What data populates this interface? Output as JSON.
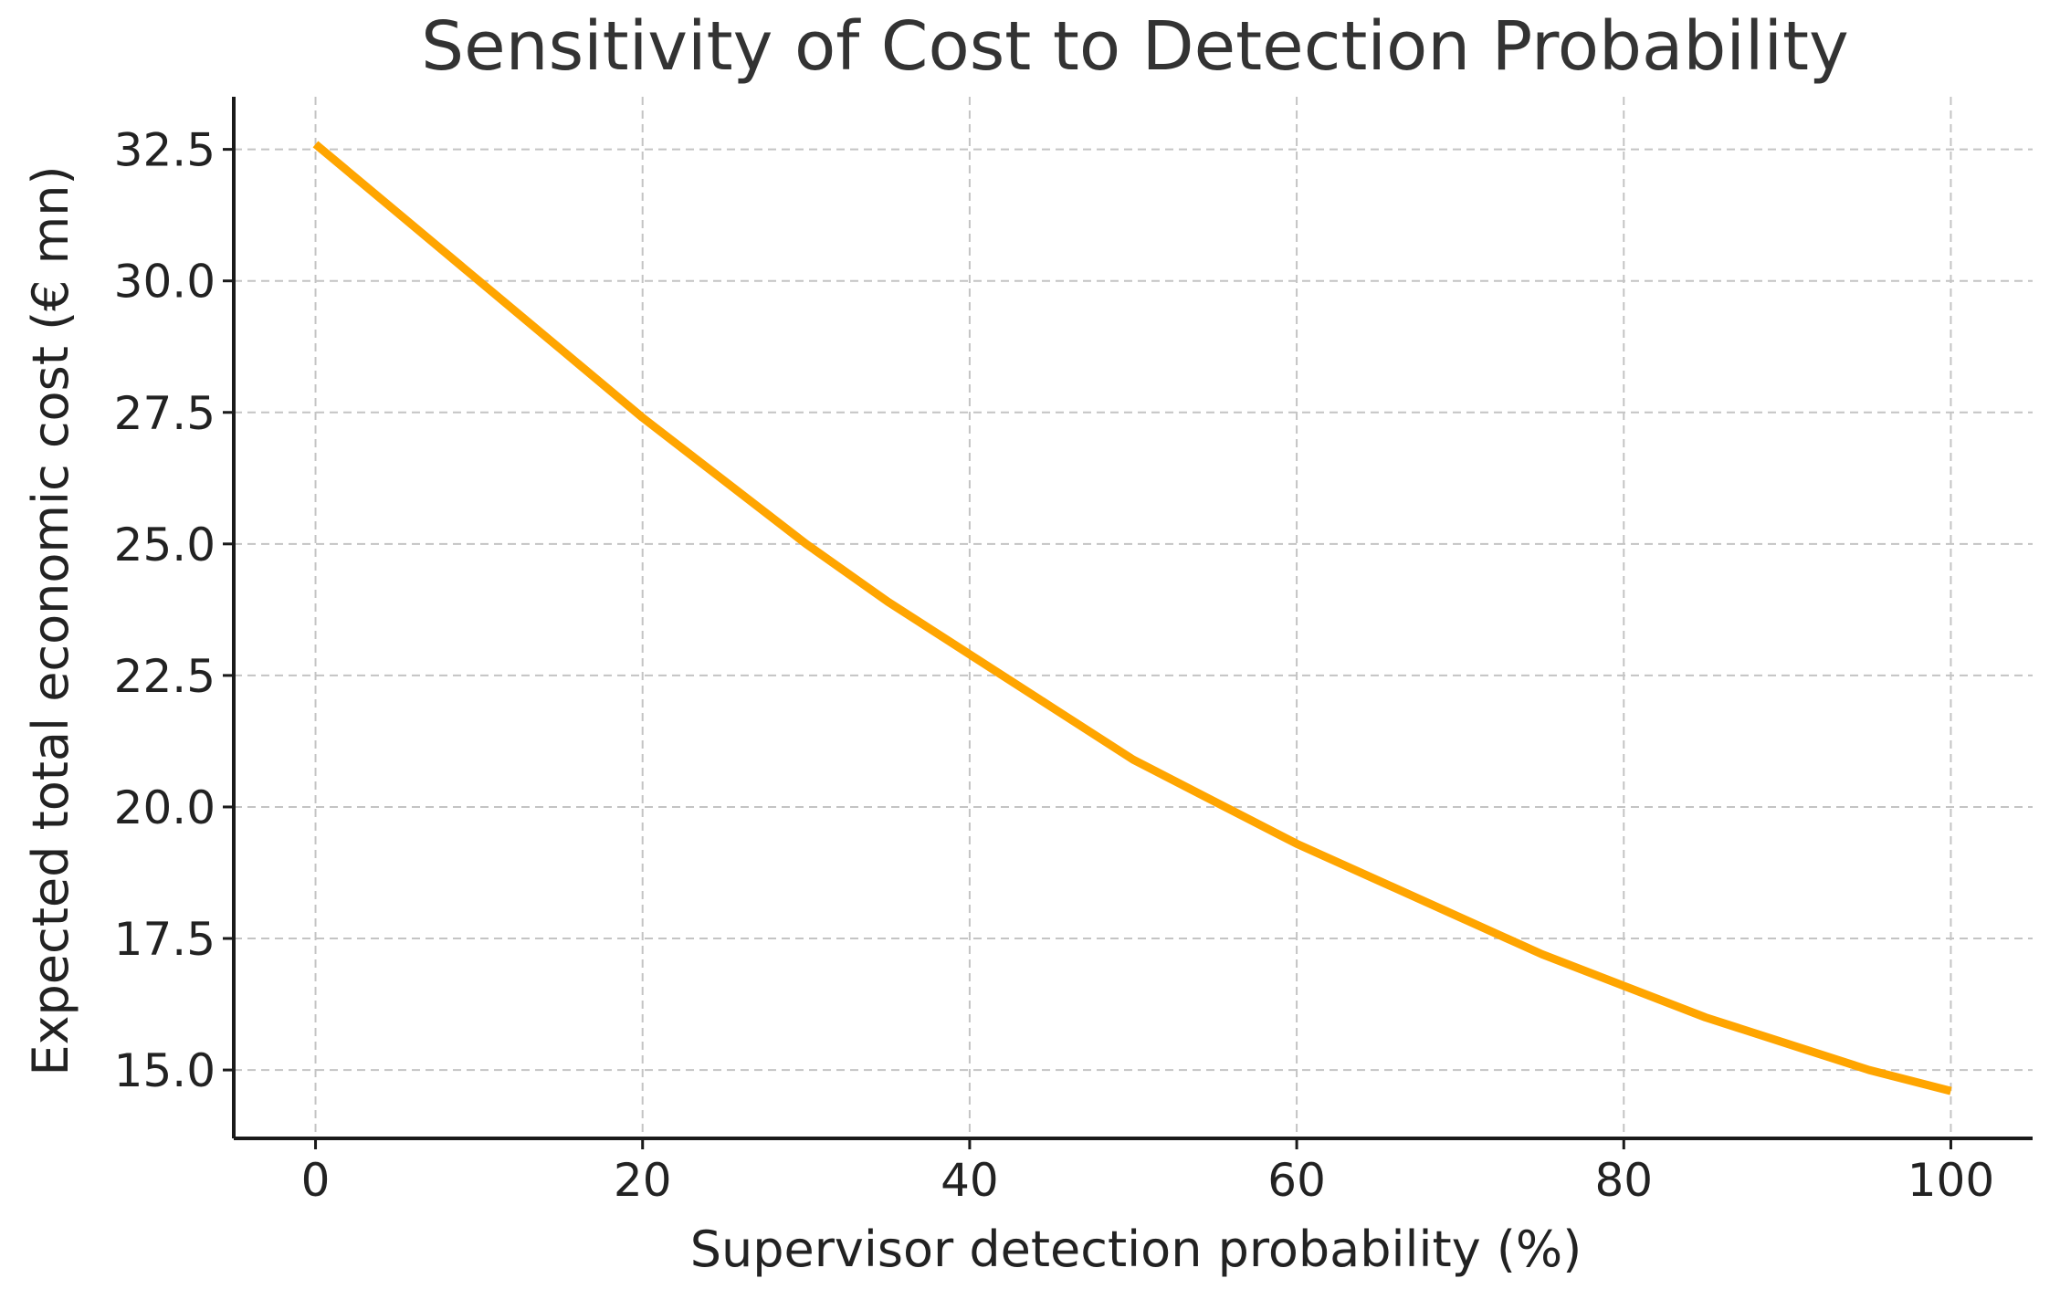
{
  "chart_data": {
    "type": "line",
    "title": "Sensitivity of Cost to Detection Probability",
    "xlabel": "Supervisor detection probability (%)",
    "ylabel": "Expected total economic cost (€ mn)",
    "xlim": [
      -5,
      105
    ],
    "ylim": [
      13.7,
      33.5
    ],
    "x_ticks": [
      0,
      20,
      40,
      60,
      80,
      100
    ],
    "x_tick_labels": [
      "0",
      "20",
      "40",
      "60",
      "80",
      "100"
    ],
    "y_ticks": [
      15.0,
      17.5,
      20.0,
      22.5,
      25.0,
      27.5,
      30.0,
      32.5
    ],
    "y_tick_labels": [
      "15.0",
      "17.5",
      "20.0",
      "22.5",
      "25.0",
      "27.5",
      "30.0",
      "32.5"
    ],
    "grid": true,
    "series": [
      {
        "name": "Expected total economic cost",
        "color": "#FFA500",
        "x": [
          0,
          5,
          10,
          15,
          20,
          25,
          30,
          35,
          40,
          45,
          50,
          55,
          60,
          65,
          70,
          75,
          80,
          85,
          90,
          95,
          100
        ],
        "y": [
          32.6,
          31.3,
          30.0,
          28.7,
          27.4,
          26.2,
          25.0,
          23.9,
          22.9,
          21.9,
          20.9,
          20.1,
          19.3,
          18.6,
          17.9,
          17.2,
          16.6,
          16.0,
          15.5,
          15.0,
          14.6
        ]
      }
    ]
  }
}
